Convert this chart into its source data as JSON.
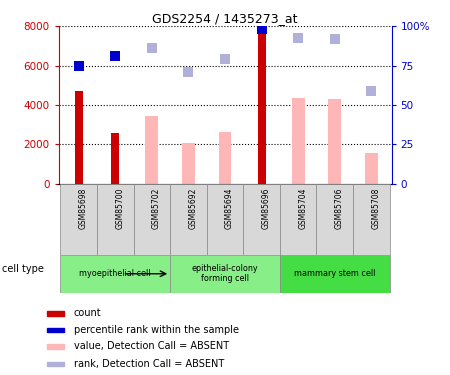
{
  "title": "GDS2254 / 1435273_at",
  "samples": [
    "GSM85698",
    "GSM85700",
    "GSM85702",
    "GSM85692",
    "GSM85694",
    "GSM85696",
    "GSM85704",
    "GSM85706",
    "GSM85708"
  ],
  "count_values": [
    4700,
    2600,
    null,
    null,
    null,
    7800,
    null,
    null,
    null
  ],
  "percentile_rank": [
    75,
    81,
    null,
    null,
    null,
    98,
    null,
    null,
    null
  ],
  "absent_value": [
    null,
    null,
    3450,
    2050,
    2650,
    null,
    4350,
    4300,
    1550
  ],
  "absent_rank": [
    null,
    null,
    6900,
    5700,
    6350,
    null,
    7400,
    7350,
    4700
  ],
  "ylim_left": [
    0,
    8000
  ],
  "ylim_right": [
    0,
    100
  ],
  "yticks_left": [
    0,
    2000,
    4000,
    6000,
    8000
  ],
  "ytick_labels_left": [
    "0",
    "2000",
    "4000",
    "6000",
    "8000"
  ],
  "yticks_right": [
    0,
    25,
    50,
    75,
    100
  ],
  "ytick_labels_right": [
    "0",
    "25",
    "50",
    "75",
    "100%"
  ],
  "count_color": "#cc0000",
  "percentile_color": "#0000cc",
  "absent_value_color": "#ffb6b6",
  "absent_rank_color": "#b0b0d8",
  "cell_groups": [
    {
      "label": "myoepithelial cell",
      "cols": [
        0,
        1,
        2
      ],
      "color": "#88ee88"
    },
    {
      "label": "epithelial-colony\nforming cell",
      "cols": [
        3,
        4,
        5
      ],
      "color": "#88ee88"
    },
    {
      "label": "mammary stem cell",
      "cols": [
        6,
        7,
        8
      ],
      "color": "#44dd44"
    }
  ],
  "legend_items": [
    {
      "label": "count",
      "color": "#cc0000"
    },
    {
      "label": "percentile rank within the sample",
      "color": "#0000cc"
    },
    {
      "label": "value, Detection Call = ABSENT",
      "color": "#ffb6b6"
    },
    {
      "label": "rank, Detection Call = ABSENT",
      "color": "#b0b0d8"
    }
  ],
  "cell_type_label": "cell type"
}
